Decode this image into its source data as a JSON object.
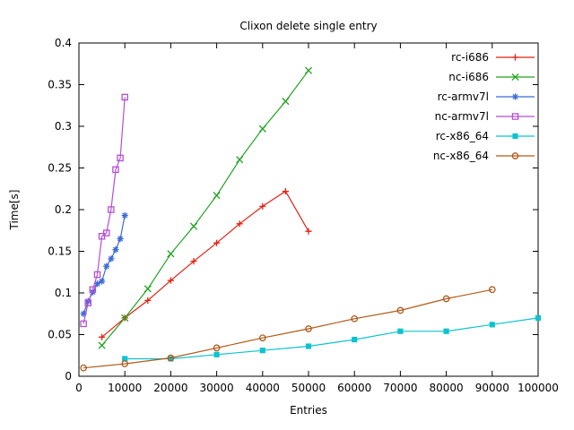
{
  "chart_data": {
    "type": "line",
    "title": "Clixon delete single entry",
    "xlabel": "Entries",
    "ylabel": "Time[s]",
    "xlim": [
      0,
      100000
    ],
    "ylim": [
      0,
      0.4
    ],
    "grid": false,
    "legend_position": "top-right-inside",
    "background_color": "#ffffff",
    "axis_color": "#000000",
    "xticks": {
      "values": [
        0,
        10000,
        20000,
        30000,
        40000,
        50000,
        60000,
        70000,
        80000,
        90000,
        100000
      ],
      "labels": [
        "0",
        "10000",
        "20000",
        "30000",
        "40000",
        "50000",
        "60000",
        "70000",
        "80000",
        "90000",
        "100000"
      ]
    },
    "yticks": {
      "values": [
        0,
        0.05,
        0.1,
        0.15,
        0.2,
        0.25,
        0.3,
        0.35,
        0.4
      ],
      "labels": [
        "0",
        "0.05",
        "0.1",
        "0.15",
        "0.2",
        "0.25",
        "0.3",
        "0.35",
        "0.4"
      ]
    },
    "series": [
      {
        "name": "rc-i686",
        "color": "#e02214",
        "marker": "plus",
        "points": [
          [
            5000,
            0.047
          ],
          [
            10000,
            0.07
          ],
          [
            15000,
            0.091
          ],
          [
            20000,
            0.115
          ],
          [
            25000,
            0.138
          ],
          [
            30000,
            0.16
          ],
          [
            35000,
            0.183
          ],
          [
            40000,
            0.204
          ],
          [
            45000,
            0.222
          ],
          [
            50000,
            0.174
          ]
        ]
      },
      {
        "name": "nc-i686",
        "color": "#1fa31f",
        "marker": "cross",
        "points": [
          [
            5000,
            0.037
          ],
          [
            10000,
            0.07
          ],
          [
            15000,
            0.105
          ],
          [
            20000,
            0.147
          ],
          [
            25000,
            0.18
          ],
          [
            30000,
            0.217
          ],
          [
            35000,
            0.26
          ],
          [
            40000,
            0.297
          ],
          [
            45000,
            0.33
          ],
          [
            50000,
            0.367
          ]
        ]
      },
      {
        "name": "rc-armv7l",
        "color": "#3c6bd6",
        "marker": "asterisk",
        "points": [
          [
            1000,
            0.075
          ],
          [
            2000,
            0.09
          ],
          [
            3000,
            0.101
          ],
          [
            4000,
            0.111
          ],
          [
            5000,
            0.114
          ],
          [
            6000,
            0.132
          ],
          [
            7000,
            0.141
          ],
          [
            8000,
            0.152
          ],
          [
            9000,
            0.165
          ],
          [
            10000,
            0.193
          ]
        ]
      },
      {
        "name": "nc-armv7l",
        "color": "#b44fd4",
        "marker": "open-square",
        "points": [
          [
            1000,
            0.063
          ],
          [
            2000,
            0.088
          ],
          [
            3000,
            0.104
          ],
          [
            4000,
            0.122
          ],
          [
            5000,
            0.168
          ],
          [
            6000,
            0.172
          ],
          [
            7000,
            0.2
          ],
          [
            8000,
            0.248
          ],
          [
            9000,
            0.262
          ],
          [
            10000,
            0.335
          ]
        ]
      },
      {
        "name": "rc-x86_64",
        "color": "#0cc3cf",
        "marker": "filled-square",
        "points": [
          [
            10000,
            0.021
          ],
          [
            20000,
            0.021
          ],
          [
            30000,
            0.026
          ],
          [
            40000,
            0.031
          ],
          [
            50000,
            0.036
          ],
          [
            60000,
            0.044
          ],
          [
            70000,
            0.054
          ],
          [
            80000,
            0.054
          ],
          [
            90000,
            0.062
          ],
          [
            100000,
            0.07
          ]
        ]
      },
      {
        "name": "nc-x86_64",
        "color": "#b05a1a",
        "marker": "open-circle",
        "points": [
          [
            1000,
            0.01
          ],
          [
            10000,
            0.015
          ],
          [
            20000,
            0.022
          ],
          [
            30000,
            0.034
          ],
          [
            40000,
            0.046
          ],
          [
            50000,
            0.057
          ],
          [
            60000,
            0.069
          ],
          [
            70000,
            0.079
          ],
          [
            80000,
            0.093
          ],
          [
            90000,
            0.104
          ]
        ]
      }
    ]
  }
}
